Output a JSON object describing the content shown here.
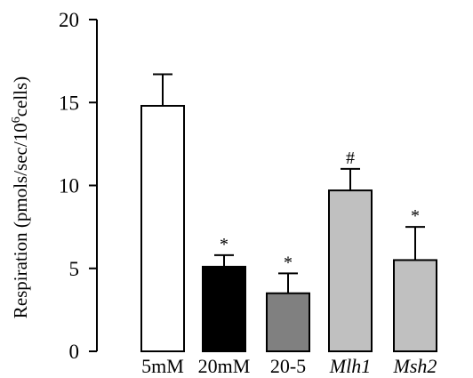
{
  "chart_data": {
    "type": "bar",
    "categories": [
      "5mM",
      "20mM",
      "20-5",
      "Mlh1",
      "Msh2"
    ],
    "italic_categories": [
      "Mlh1",
      "Msh2"
    ],
    "values": [
      14.8,
      5.1,
      3.5,
      9.7,
      5.5
    ],
    "error_upper": [
      1.9,
      0.7,
      1.2,
      1.3,
      2.0
    ],
    "annotations": [
      "",
      "*",
      "*",
      "#",
      "*"
    ],
    "colors": [
      "#ffffff",
      "#000000",
      "#808080",
      "#c0c0c0",
      "#c0c0c0"
    ],
    "ylim": [
      0,
      20
    ],
    "yticks": [
      0,
      5,
      10,
      15,
      20
    ],
    "ylabel_main": "Respiration (pmols/sec/10",
    "ylabel_sup": "6",
    "ylabel_tail": "cells)",
    "grid": false
  }
}
